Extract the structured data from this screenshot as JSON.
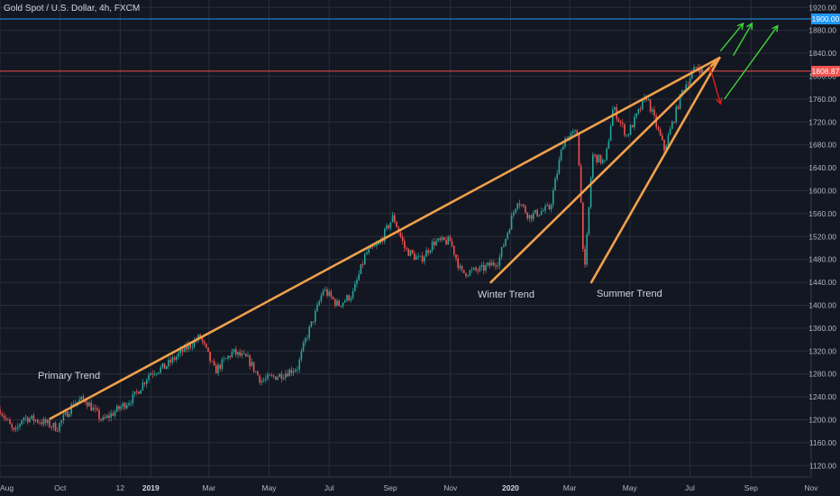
{
  "header": {
    "symbol": "Gold Spot / U.S. Dollar",
    "interval": "4h",
    "source": "FXCM",
    "separator": ", "
  },
  "annotations": {
    "primary": "Primary Trend",
    "winter": "Winter Trend",
    "summer": "Summer Trend"
  },
  "badges": {
    "target_label": "1900.00",
    "last_label": "1808.87"
  },
  "colors": {
    "background": "#131722",
    "grid": "#2a2e39",
    "trendline": "#f0a04b",
    "up_candle": "#26a69a",
    "down_candle": "#ef5350",
    "target_line": "#2196f3",
    "last_price_line": "#ef5350",
    "bull_arrow": "#3fd43a",
    "bear_arrow": "#e01f1f"
  },
  "chart_data": {
    "type": "candlestick",
    "instrument": "Gold Spot / U.S. Dollar",
    "timeframe": "4h",
    "y_axis": {
      "ylim": [
        1100,
        1933
      ],
      "ticks": [
        1120,
        1160,
        1200,
        1240,
        1280,
        1320,
        1360,
        1400,
        1440,
        1480,
        1520,
        1560,
        1600,
        1640,
        1680,
        1720,
        1760,
        1800,
        1840,
        1880,
        1920
      ]
    },
    "x_axis": {
      "xlim": [
        "2018-08-01",
        "2020-11-01"
      ],
      "ticks": [
        {
          "label": "Aug",
          "date": "2018-08-01",
          "bold": false
        },
        {
          "label": "Oct",
          "date": "2018-10-01",
          "bold": false
        },
        {
          "label": "12",
          "date": "2018-12-01",
          "bold": false
        },
        {
          "label": "2019",
          "date": "2019-01-01",
          "bold": true
        },
        {
          "label": "Mar",
          "date": "2019-03-01",
          "bold": false
        },
        {
          "label": "May",
          "date": "2019-05-01",
          "bold": false
        },
        {
          "label": "Jul",
          "date": "2019-07-01",
          "bold": false
        },
        {
          "label": "Sep",
          "date": "2019-09-01",
          "bold": false
        },
        {
          "label": "Nov",
          "date": "2019-11-01",
          "bold": false
        },
        {
          "label": "2020",
          "date": "2020-01-01",
          "bold": true
        },
        {
          "label": "Mar",
          "date": "2020-03-01",
          "bold": false
        },
        {
          "label": "May",
          "date": "2020-05-01",
          "bold": false
        },
        {
          "label": "Jul",
          "date": "2020-07-01",
          "bold": false
        },
        {
          "label": "Sep",
          "date": "2020-09-01",
          "bold": false
        },
        {
          "label": "Nov",
          "date": "2020-11-01",
          "bold": false
        }
      ]
    },
    "price_path": [
      [
        "2018-08-01",
        1218
      ],
      [
        "2018-08-16",
        1175
      ],
      [
        "2018-08-24",
        1205
      ],
      [
        "2018-09-10",
        1198
      ],
      [
        "2018-09-28",
        1186
      ],
      [
        "2018-10-15",
        1230
      ],
      [
        "2018-10-26",
        1236
      ],
      [
        "2018-11-13",
        1198
      ],
      [
        "2018-11-30",
        1220
      ],
      [
        "2018-12-15",
        1240
      ],
      [
        "2018-12-31",
        1282
      ],
      [
        "2019-01-15",
        1292
      ],
      [
        "2019-02-01",
        1318
      ],
      [
        "2019-02-20",
        1345
      ],
      [
        "2019-03-07",
        1285
      ],
      [
        "2019-03-25",
        1318
      ],
      [
        "2019-04-10",
        1305
      ],
      [
        "2019-04-23",
        1268
      ],
      [
        "2019-05-15",
        1280
      ],
      [
        "2019-05-30",
        1292
      ],
      [
        "2019-06-07",
        1340
      ],
      [
        "2019-06-18",
        1390
      ],
      [
        "2019-06-25",
        1428
      ],
      [
        "2019-07-10",
        1400
      ],
      [
        "2019-07-25",
        1420
      ],
      [
        "2019-08-07",
        1490
      ],
      [
        "2019-08-20",
        1505
      ],
      [
        "2019-09-04",
        1555
      ],
      [
        "2019-09-16",
        1498
      ],
      [
        "2019-10-01",
        1478
      ],
      [
        "2019-10-15",
        1510
      ],
      [
        "2019-11-01",
        1512
      ],
      [
        "2019-11-12",
        1456
      ],
      [
        "2019-12-02",
        1462
      ],
      [
        "2019-12-20",
        1478
      ],
      [
        "2020-01-08",
        1585
      ],
      [
        "2020-01-20",
        1555
      ],
      [
        "2020-02-10",
        1570
      ],
      [
        "2020-02-24",
        1690
      ],
      [
        "2020-03-09",
        1702
      ],
      [
        "2020-03-16",
        1451
      ],
      [
        "2020-03-24",
        1662
      ],
      [
        "2020-04-06",
        1648
      ],
      [
        "2020-04-14",
        1745
      ],
      [
        "2020-04-28",
        1696
      ],
      [
        "2020-05-18",
        1765
      ],
      [
        "2020-06-05",
        1672
      ],
      [
        "2020-06-24",
        1778
      ],
      [
        "2020-07-08",
        1818
      ],
      [
        "2020-07-15",
        1808
      ]
    ],
    "horizontal_lines": [
      {
        "label": "1900.00",
        "price": 1900,
        "color": "#2196f3"
      },
      {
        "label": "1808.87",
        "price": 1808.87,
        "color": "#ef5350"
      }
    ],
    "trend_lines": [
      {
        "name": "Primary Trend",
        "from": [
          "2018-09-21",
          1202
        ],
        "to": [
          "2020-07-31",
          1832
        ]
      },
      {
        "name": "Winter Trend",
        "from": [
          "2019-12-12",
          1440
        ],
        "to": [
          "2020-07-31",
          1832
        ]
      },
      {
        "name": "Summer Trend",
        "from": [
          "2020-03-23",
          1440
        ],
        "to": [
          "2020-07-31",
          1832
        ]
      }
    ],
    "projection_arrows": [
      {
        "kind": "bullish",
        "from": [
          "2020-08-01",
          1844
        ],
        "to": [
          "2020-08-24",
          1892
        ]
      },
      {
        "kind": "bullish",
        "from": [
          "2020-08-14",
          1836
        ],
        "to": [
          "2020-09-02",
          1892
        ]
      },
      {
        "kind": "bullish",
        "from": [
          "2020-08-05",
          1760
        ],
        "to": [
          "2020-09-28",
          1888
        ]
      },
      {
        "kind": "bearish",
        "from": [
          "2020-07-21",
          1818
        ],
        "to": [
          "2020-08-01",
          1752
        ]
      }
    ]
  }
}
